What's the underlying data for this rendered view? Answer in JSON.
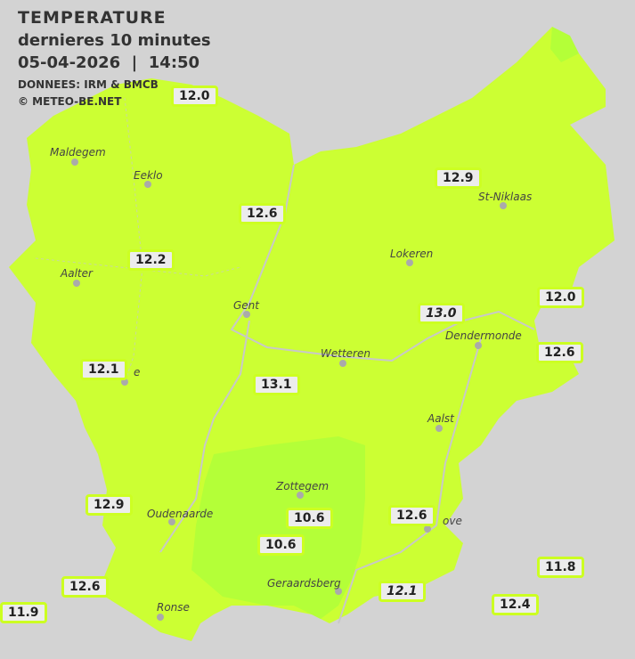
{
  "header": {
    "title": "TEMPERATURE",
    "subtitle": "dernieres 10 minutes",
    "datetime": "05-04-2026  |  14:50",
    "source": "DONNEES: IRM & BMCB",
    "copyright": "© METEO-BE.NET"
  },
  "colors": {
    "background": "#d3d3d3",
    "region": "#ccff33",
    "warm_zone": "#b4ff38",
    "label_border": "#ccff22"
  },
  "cities": [
    {
      "name": "Maldegem"
    },
    {
      "name": "Eeklo"
    },
    {
      "name": "Aalter"
    },
    {
      "name": "Gent"
    },
    {
      "name": "Lokeren"
    },
    {
      "name": "St-Niklaas"
    },
    {
      "name": "Dendermonde"
    },
    {
      "name": "Wetteren"
    },
    {
      "name": "Aalst"
    },
    {
      "name": "Zottegem"
    },
    {
      "name": "Oudenaarde"
    },
    {
      "name": "Ronse"
    },
    {
      "name": "Geraardsberg"
    },
    {
      "name": "ove"
    },
    {
      "name": "e"
    }
  ],
  "temperatures": [
    {
      "value": "12.0",
      "italic": false
    },
    {
      "value": "12.9",
      "italic": false
    },
    {
      "value": "12.6",
      "italic": false
    },
    {
      "value": "12.2",
      "italic": false
    },
    {
      "value": "12.0",
      "italic": false
    },
    {
      "value": "13.0",
      "italic": true
    },
    {
      "value": "12.6",
      "italic": false
    },
    {
      "value": "12.1",
      "italic": false
    },
    {
      "value": "13.1",
      "italic": false
    },
    {
      "value": "12.9",
      "italic": false
    },
    {
      "value": "10.6",
      "italic": false
    },
    {
      "value": "10.6",
      "italic": false
    },
    {
      "value": "12.6",
      "italic": false
    },
    {
      "value": "12.6",
      "italic": false
    },
    {
      "value": "12.1",
      "italic": true
    },
    {
      "value": "11.8",
      "italic": false
    },
    {
      "value": "12.4",
      "italic": false
    },
    {
      "value": "11.9",
      "italic": false
    }
  ]
}
